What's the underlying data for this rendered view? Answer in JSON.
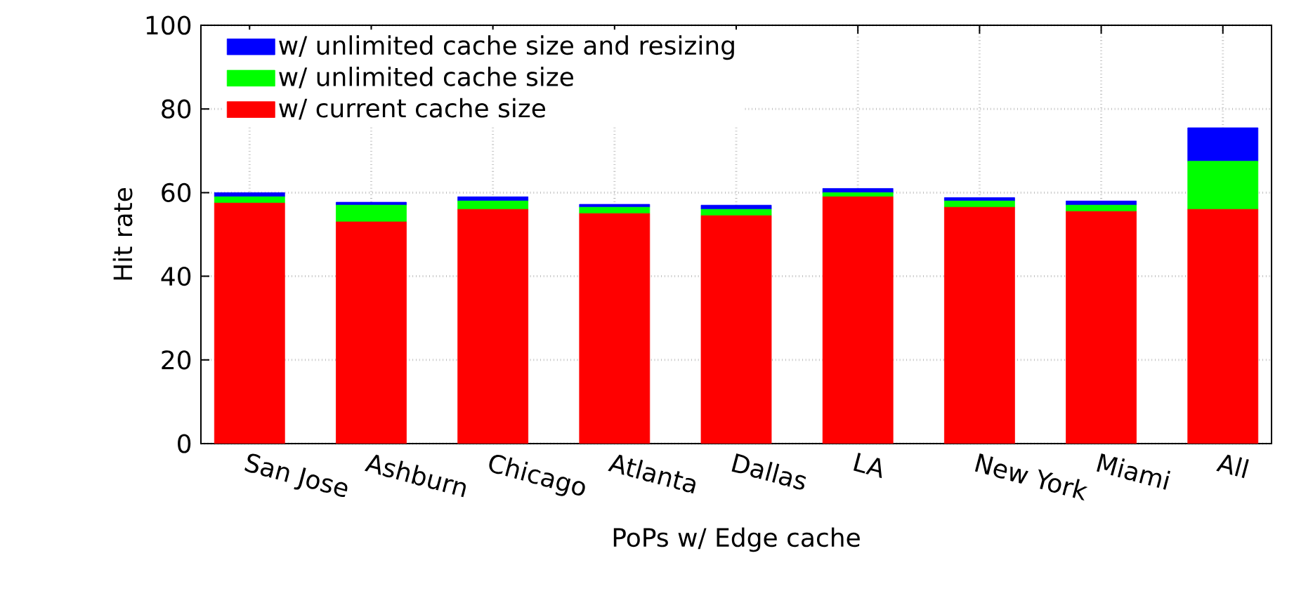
{
  "chart_data": {
    "type": "bar",
    "stacked": true,
    "xlabel": "PoPs w/ Edge cache",
    "ylabel": "Hit rate",
    "categories": [
      "San Jose",
      "Ashburn",
      "Chicago",
      "Atlanta",
      "Dallas",
      "LA",
      "New York",
      "Miami",
      "All"
    ],
    "series": [
      {
        "name": "w/ current cache size",
        "color": "#ff0000",
        "values": [
          57.5,
          53,
          56,
          55,
          54.5,
          59,
          56.5,
          55.5,
          56
        ]
      },
      {
        "name": "w/ unlimited cache size",
        "color": "#00ff00",
        "values": [
          1.5,
          4,
          2,
          1.5,
          1.5,
          1,
          1.5,
          1.5,
          11.5
        ]
      },
      {
        "name": "w/ unlimited cache size and resizing",
        "color": "#0000ff",
        "values": [
          1,
          0.7,
          1,
          0.7,
          1,
          1,
          0.8,
          1,
          8
        ]
      }
    ],
    "ylim": [
      0,
      100
    ],
    "yticks": [
      0,
      20,
      40,
      60,
      80,
      100
    ],
    "grid": true,
    "legend": "top left"
  }
}
